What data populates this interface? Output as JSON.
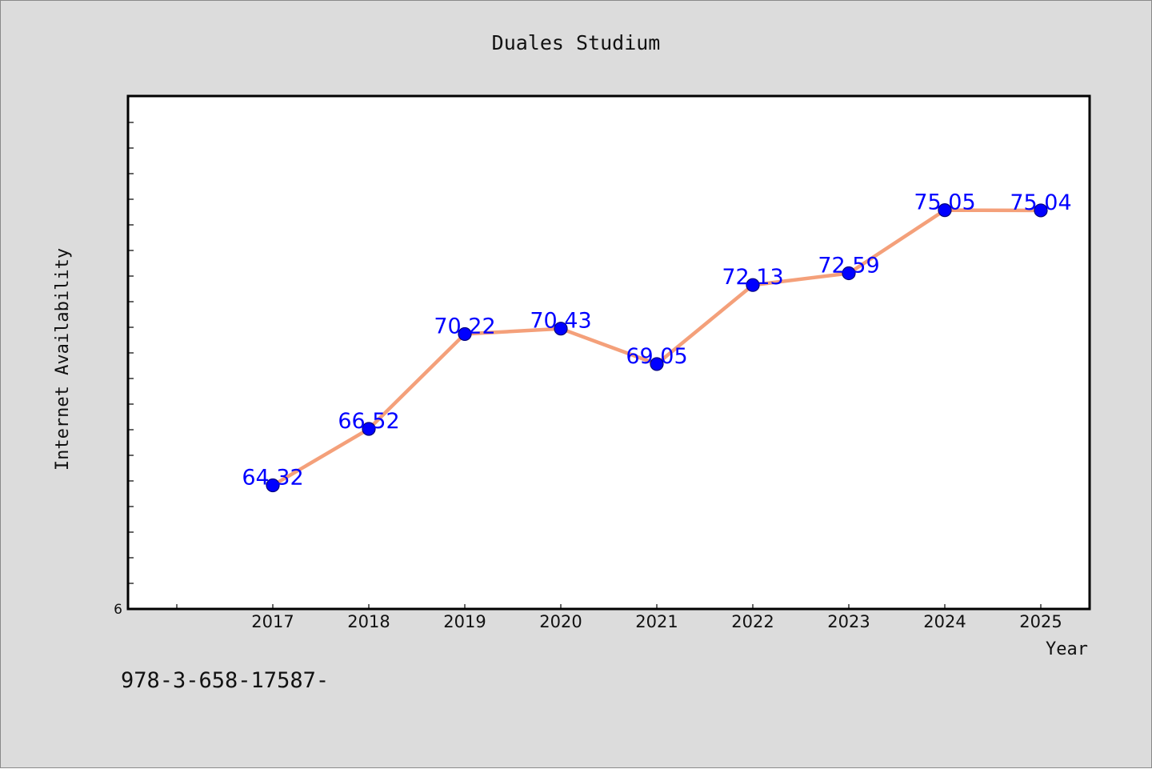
{
  "chart_data": {
    "type": "line",
    "title": "Duales Studium",
    "xlabel": "Year",
    "ylabel": "Internet Availability",
    "x": [
      "2017",
      "2018",
      "2019",
      "2020",
      "2021",
      "2022",
      "2023",
      "2024",
      "2025"
    ],
    "series": [
      {
        "values": [
          64.32,
          66.52,
          70.22,
          70.43,
          69.05,
          72.13,
          72.59,
          75.05,
          75.04
        ],
        "labels": [
          "64.32",
          "66.52",
          "70.22",
          "70.43",
          "69.05",
          "72.13",
          "72.59",
          "75.05",
          "75.04"
        ]
      }
    ],
    "ylim": [
      59.5,
      79.5
    ],
    "y_tick_labels": [
      "6"
    ],
    "grid": false,
    "legend": "none"
  },
  "footer": {
    "code": "978-3-658-17587-"
  },
  "colors": {
    "background": "#dcdcdc",
    "plot_background": "#ffffff",
    "line": "#f4a07a",
    "marker": "#0000ff",
    "data_label": "#0000ff"
  }
}
